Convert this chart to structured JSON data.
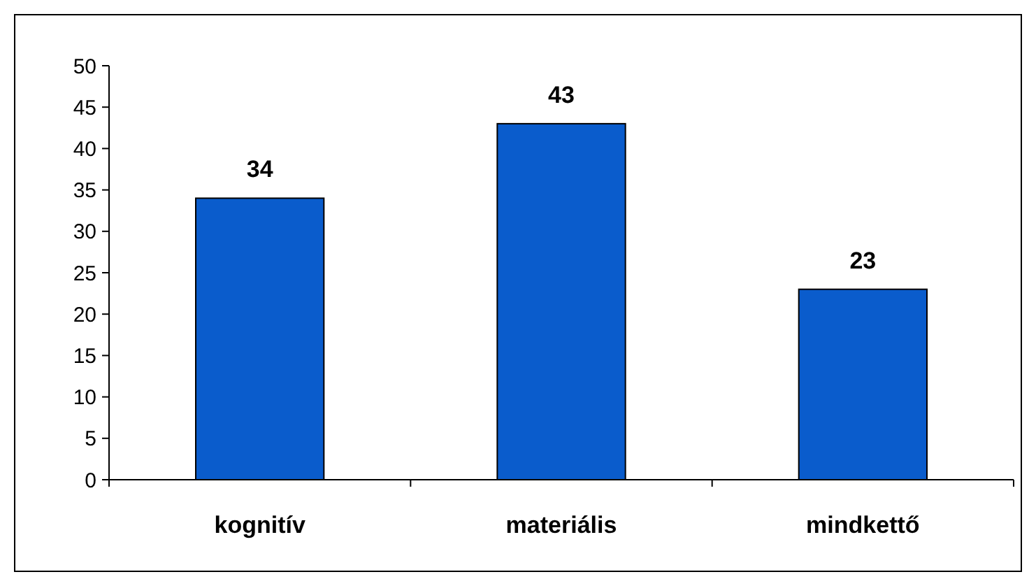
{
  "chart_data": {
    "type": "bar",
    "categories": [
      "kognitív",
      "materiális",
      "mindkettő"
    ],
    "values": [
      34,
      43,
      23
    ],
    "color": "#0a5ccc",
    "ylim": [
      0,
      50
    ],
    "yticks": [
      0,
      5,
      10,
      15,
      20,
      25,
      30,
      35,
      40,
      45,
      50
    ],
    "data_labels": true,
    "grid": false
  }
}
